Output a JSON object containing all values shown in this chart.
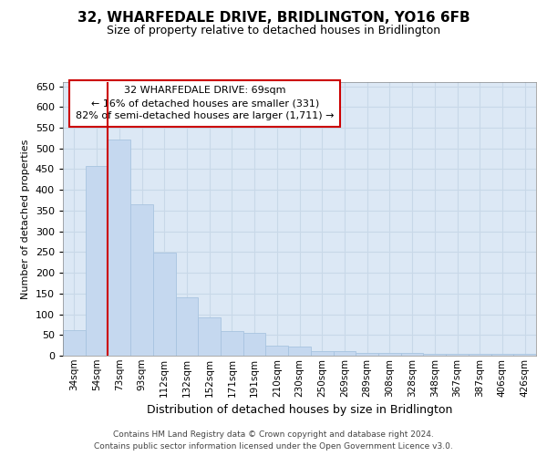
{
  "title": "32, WHARFEDALE DRIVE, BRIDLINGTON, YO16 6FB",
  "subtitle": "Size of property relative to detached houses in Bridlington",
  "xlabel": "Distribution of detached houses by size in Bridlington",
  "ylabel": "Number of detached properties",
  "categories": [
    "34sqm",
    "54sqm",
    "73sqm",
    "93sqm",
    "112sqm",
    "132sqm",
    "152sqm",
    "171sqm",
    "191sqm",
    "210sqm",
    "230sqm",
    "250sqm",
    "269sqm",
    "289sqm",
    "308sqm",
    "328sqm",
    "348sqm",
    "367sqm",
    "387sqm",
    "406sqm",
    "426sqm"
  ],
  "values": [
    62,
    457,
    522,
    365,
    248,
    140,
    92,
    60,
    55,
    24,
    23,
    10,
    12,
    7,
    6,
    6,
    5,
    5,
    4,
    5,
    4
  ],
  "bar_color": "#c5d8ef",
  "bar_edgecolor": "#a8c4e0",
  "vline_pos": 1.5,
  "vline_color": "#cc0000",
  "annotation_text": "32 WHARFEDALE DRIVE: 69sqm\n← 16% of detached houses are smaller (331)\n82% of semi-detached houses are larger (1,711) →",
  "annotation_box_facecolor": "#ffffff",
  "annotation_box_edgecolor": "#cc0000",
  "grid_color": "#c8d8e8",
  "background_color": "#dce8f5",
  "ylim": [
    0,
    660
  ],
  "yticks": [
    0,
    50,
    100,
    150,
    200,
    250,
    300,
    350,
    400,
    450,
    500,
    550,
    600,
    650
  ],
  "footer1": "Contains HM Land Registry data © Crown copyright and database right 2024.",
  "footer2": "Contains public sector information licensed under the Open Government Licence v3.0."
}
